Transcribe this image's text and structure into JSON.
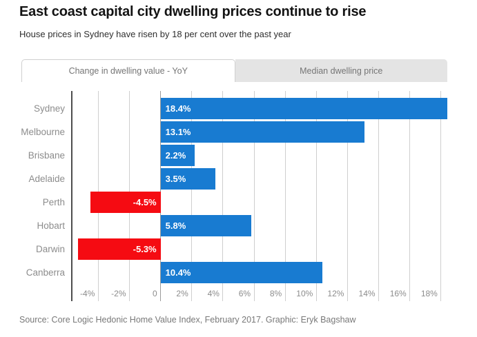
{
  "header": {
    "title": "East coast capital city dwelling prices continue to rise",
    "subtitle": "House prices in Sydney have risen by 18 per cent over the past year"
  },
  "tabs": [
    {
      "label": "Change in dwelling value - YoY",
      "active": true
    },
    {
      "label": "Median dwelling price",
      "active": false
    }
  ],
  "chart_data": {
    "type": "bar",
    "orientation": "horizontal",
    "categories": [
      "Sydney",
      "Melbourne",
      "Brisbane",
      "Adelaide",
      "Perth",
      "Hobart",
      "Darwin",
      "Canberra"
    ],
    "values": [
      18.4,
      13.1,
      2.2,
      3.5,
      -4.5,
      5.8,
      -5.3,
      10.4
    ],
    "value_labels": [
      "18.4%",
      "13.1%",
      "2.2%",
      "3.5%",
      "-4.5%",
      "5.8%",
      "-5.3%",
      "10.4%"
    ],
    "tick_values": [
      -4,
      -2,
      0,
      2,
      4,
      6,
      8,
      10,
      12,
      14,
      16,
      18
    ],
    "tick_labels": [
      "-4%",
      "-2%",
      "0",
      "2%",
      "4%",
      "6%",
      "8%",
      "10%",
      "12%",
      "14%",
      "16%",
      "18%"
    ],
    "xlim": [
      -5.7,
      20
    ],
    "grid": "vertical",
    "legend": "none",
    "colors": {
      "positive": "#187bd1",
      "negative": "#f50b12"
    }
  },
  "footer": {
    "source": "Source: Core Logic Hedonic Home Value Index, February 2017. Graphic: Eryk Bagshaw"
  }
}
